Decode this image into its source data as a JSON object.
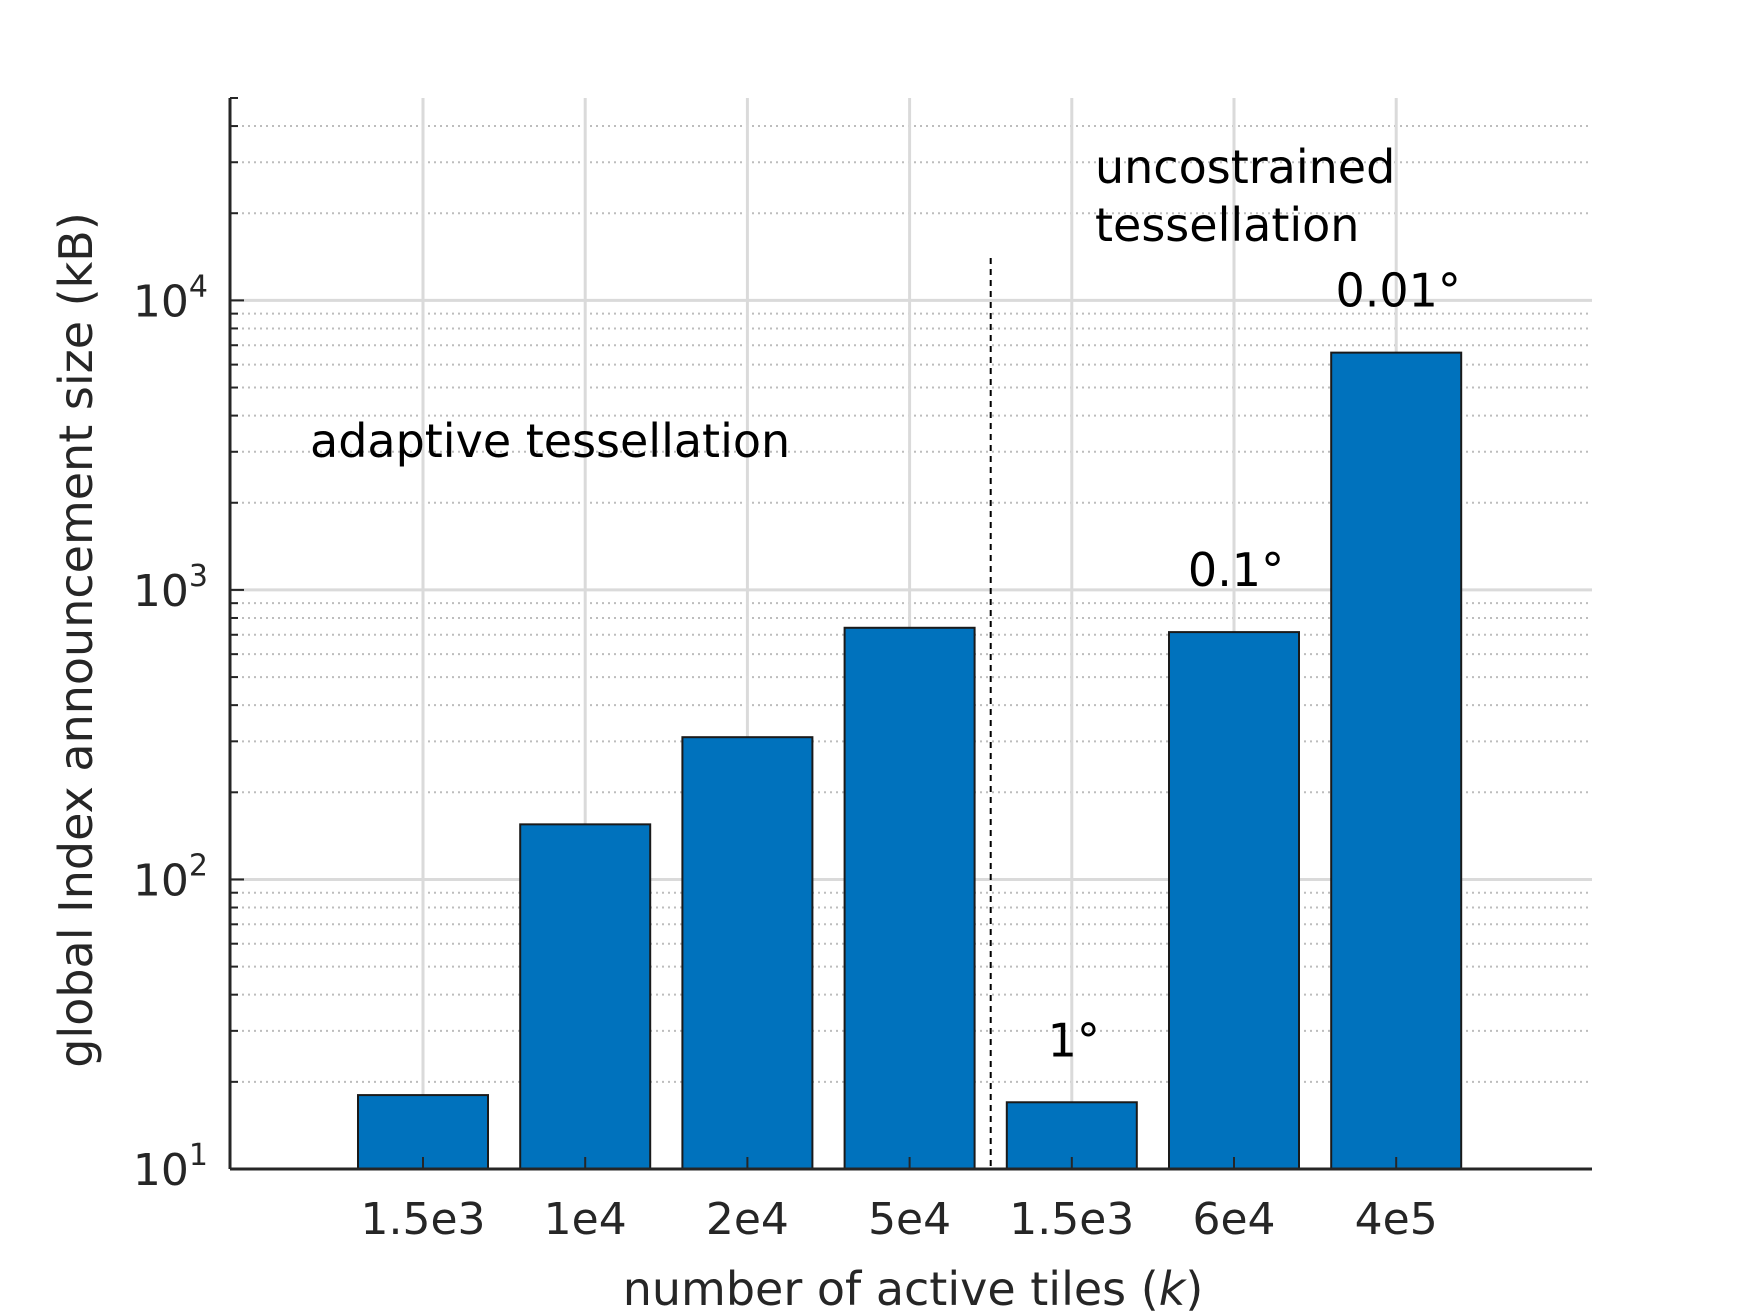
{
  "chart_data": {
    "type": "bar",
    "title": "",
    "xlabel": "number of active tiles (k)",
    "ylabel": "global Index announcement size (kB)",
    "yscale": "log",
    "ylim": [
      10,
      50000
    ],
    "yticks": [
      10,
      100,
      1000,
      10000
    ],
    "ytick_labels": [
      {
        "base": "10",
        "exp": "1"
      },
      {
        "base": "10",
        "exp": "2"
      },
      {
        "base": "10",
        "exp": "3"
      },
      {
        "base": "10",
        "exp": "4"
      }
    ],
    "grid": true,
    "categories": [
      "1.5e3",
      "1e4",
      "2e4",
      "5e4",
      "1.5e3",
      "6e4",
      "4e5"
    ],
    "values": [
      18,
      155,
      310,
      740,
      17,
      715,
      6600
    ],
    "bar_color": "#0072BD",
    "groups": [
      {
        "label": "adaptive tessellation",
        "categories": [
          0,
          1,
          2,
          3
        ]
      },
      {
        "label_lines": [
          "uncostrained",
          "tessellation"
        ],
        "categories": [
          4,
          5,
          6
        ]
      }
    ],
    "bar_annotations": [
      {
        "index": 4,
        "text": "1°"
      },
      {
        "index": 5,
        "text": "0.1°"
      },
      {
        "index": 6,
        "text": "0.01°"
      }
    ]
  }
}
